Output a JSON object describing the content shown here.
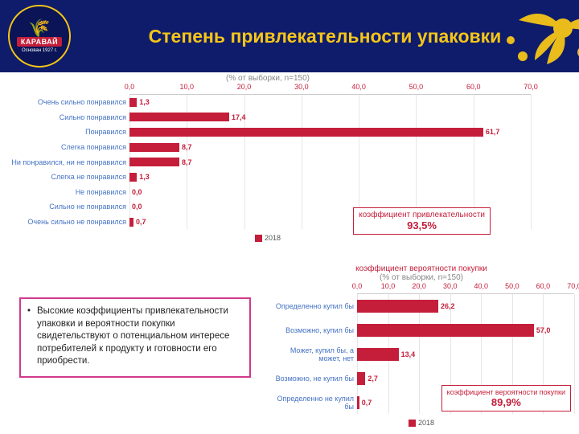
{
  "header": {
    "title": "Степень привлекательности упаковки",
    "logo_brand": "КАРАВАЙ",
    "logo_sub": "Основан 1927 г."
  },
  "chart1": {
    "type": "bar-horizontal",
    "subtitle": "(% от выборки, n=150)",
    "xlim": [
      0,
      70
    ],
    "xtick_step": 10,
    "xtick_labels": [
      "0,0",
      "10,0",
      "20,0",
      "30,0",
      "40,0",
      "50,0",
      "60,0",
      "70,0"
    ],
    "bar_color": "#c41e3a",
    "label_color": "#4472c4",
    "value_color": "#c41e3a",
    "grid_color": "#e6e6e6",
    "background_color": "#ffffff",
    "title_fontsize": 10,
    "label_fontsize": 9,
    "categories": [
      "Очень сильно понравился",
      "Сильно понравился",
      "Понравился",
      "Слегка понравился",
      "Ни понравился, ни не понравился",
      "Слегка не понравился",
      "Не понравился",
      "Сильно не понравился",
      "Очень сильно не понравился"
    ],
    "values": [
      1.3,
      17.4,
      61.7,
      8.7,
      8.7,
      1.3,
      0.0,
      0.0,
      0.7
    ],
    "value_labels": [
      "1,3",
      "17,4",
      "61,7",
      "8,7",
      "8,7",
      "1,3",
      "0,0",
      "0,0",
      "0,7"
    ],
    "coef": {
      "title": "коэффициент привлекательности",
      "value": "93,5%"
    },
    "legend_label": "2018"
  },
  "chart2": {
    "type": "bar-horizontal",
    "subtitle_line1": "коэффициент вероятности покупки",
    "subtitle_line2": "(% от выборки, n=150)",
    "xlim": [
      0,
      70
    ],
    "xtick_step": 10,
    "xtick_labels": [
      "0,0",
      "10,0",
      "20,0",
      "30,0",
      "40,0",
      "50,0",
      "60,0",
      "70,0"
    ],
    "bar_color": "#c41e3a",
    "label_color": "#4472c4",
    "value_color": "#c41e3a",
    "grid_color": "#e6e6e6",
    "background_color": "#ffffff",
    "label_fontsize": 9,
    "categories": [
      "Определенно купил бы",
      "Возможно, купил бы",
      "Может, купил бы, а может, нет",
      "Возможно, не купил бы",
      "Определенно не купил бы"
    ],
    "values": [
      26.2,
      57.0,
      13.4,
      2.7,
      0.7
    ],
    "value_labels": [
      "26,2",
      "57,0",
      "13,4",
      "2,7",
      "0,7"
    ],
    "coef": {
      "title": "коэффициент вероятности покупки",
      "value": "89,9%"
    },
    "legend_label": "2018"
  },
  "summary": {
    "text": "Высокие коэффициенты привлекательности упаковки и вероятности покупки свидетельствуют о потенциальном интересе потребителей к продукту и готовности его приобрести."
  },
  "colors": {
    "header_bg": "#0f1c6b",
    "accent_gold": "#f5c518",
    "brand_red": "#c41e3a",
    "summary_border": "#d13a8c"
  }
}
